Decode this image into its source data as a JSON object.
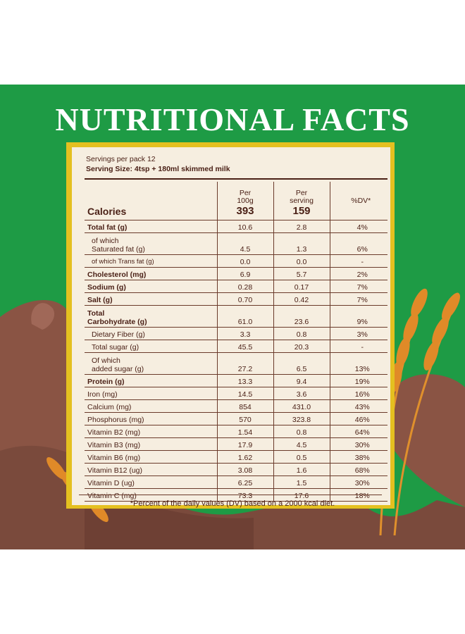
{
  "title": "NUTRITIONAL FACTS",
  "servings": "Servings per pack 12",
  "serving_size": "Serving Size: 4tsp + 180ml skimmed milk",
  "header": {
    "calories_label": "Calories",
    "col1": "Per\n100g",
    "col2": "Per\nserving",
    "col3": "%DV*",
    "calories_100g": "393",
    "calories_serving": "159"
  },
  "rows": [
    {
      "label": "Total fat (g)",
      "per100": "10.6",
      "serving": "2.8",
      "dv": "4%"
    },
    {
      "label": "of which\nSaturated fat (g)",
      "per100": "4.5",
      "serving": "1.3",
      "dv": "6%"
    },
    {
      "label": "of which Trans fat (g)",
      "per100": "0.0",
      "serving": "0.0",
      "dv": "-"
    },
    {
      "label": "Cholesterol (mg)",
      "per100": "6.9",
      "serving": "5.7",
      "dv": "2%"
    },
    {
      "label": "Sodium (g)",
      "per100": "0.28",
      "serving": "0.17",
      "dv": "7%"
    },
    {
      "label": "Salt (g)",
      "per100": "0.70",
      "serving": "0.42",
      "dv": "7%"
    },
    {
      "label": "Total\nCarbohydrate (g)",
      "per100": "61.0",
      "serving": "23.6",
      "dv": "9%"
    },
    {
      "label": "Dietary Fiber (g)",
      "per100": "3.3",
      "serving": "0.8",
      "dv": "3%"
    },
    {
      "label": "Total sugar (g)",
      "per100": "45.5",
      "serving": "20.3",
      "dv": "-"
    },
    {
      "label": "Of which\nadded sugar (g)",
      "per100": "27.2",
      "serving": "6.5",
      "dv": "13%"
    },
    {
      "label": "Protein (g)",
      "per100": "13.3",
      "serving": "9.4",
      "dv": "19%"
    },
    {
      "label": "Iron (mg)",
      "per100": "14.5",
      "serving": "3.6",
      "dv": "16%"
    },
    {
      "label": "Calcium (mg)",
      "per100": "854",
      "serving": "431.0",
      "dv": "43%"
    },
    {
      "label": "Phosphorus (mg)",
      "per100": "570",
      "serving": "323.8",
      "dv": "46%"
    },
    {
      "label": "Vitamin B2 (mg)",
      "per100": "1.54",
      "serving": "0.8",
      "dv": "64%"
    },
    {
      "label": "Vitamin B3 (mg)",
      "per100": "17.9",
      "serving": "4.5",
      "dv": "30%"
    },
    {
      "label": "Vitamin B6 (mg)",
      "per100": "1.62",
      "serving": "0.5",
      "dv": "38%"
    },
    {
      "label": "Vitamin B12 (ug)",
      "per100": "3.08",
      "serving": "1.6",
      "dv": "68%"
    },
    {
      "label": "Vitamin D (ug)",
      "per100": "6.25",
      "serving": "1.5",
      "dv": "30%"
    },
    {
      "label": "Vitamin C (mg)",
      "per100": "73.3",
      "serving": "17.6",
      "dv": "18%"
    }
  ],
  "footnote": "*Percent of the daily values (DV) based on a 2000 kcal diet.",
  "colors": {
    "green": "#1e9b45",
    "panel": "#f6eee0",
    "border": "#e4c020",
    "text": "#4a2016",
    "chocolate": "#8a5444",
    "wheat": "#e0902c"
  }
}
